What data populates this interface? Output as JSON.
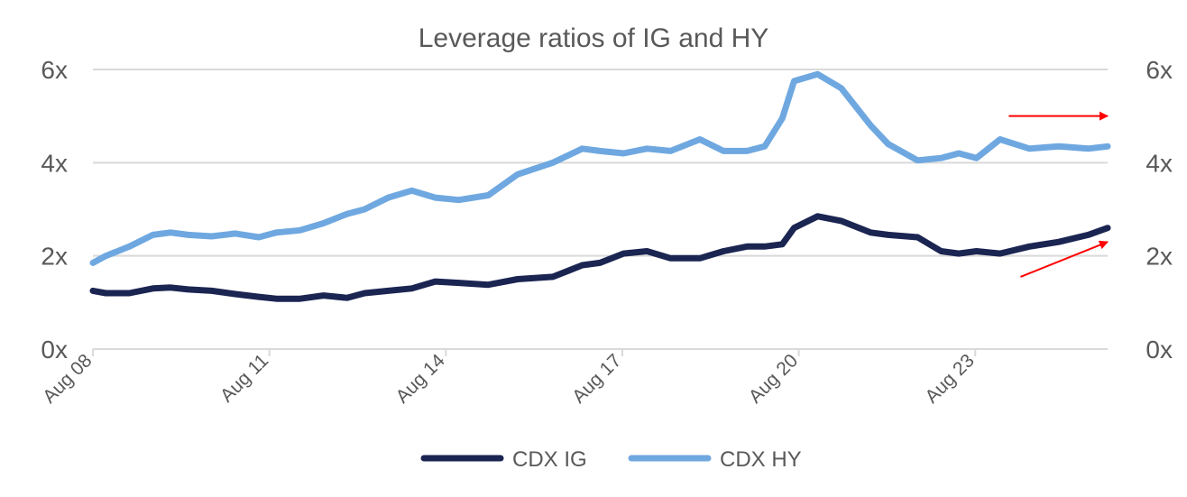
{
  "chart_data": {
    "type": "line",
    "title": "Leverage ratios of IG and HY",
    "xlabel": "",
    "ylabel": "",
    "x_tick_labels": [
      "Aug 08",
      "Aug 11",
      "Aug 14",
      "Aug 17",
      "Aug 20",
      "Aug 23"
    ],
    "x_tick_positions": [
      2008.58,
      2011.58,
      2014.58,
      2017.58,
      2020.58,
      2023.58
    ],
    "xlim": [
      2008.58,
      2025.83
    ],
    "ylim": [
      0,
      6
    ],
    "y_ticks": [
      0,
      2,
      4,
      6
    ],
    "y_tick_labels_left": [
      "0x",
      "2x",
      "4x",
      "6x"
    ],
    "y_tick_labels_right": [
      "0x",
      "2x",
      "4x",
      "6x"
    ],
    "grid": true,
    "legend_position": "bottom",
    "series": [
      {
        "name": "CDX IG",
        "color": "#1b2552",
        "x": [
          2008.58,
          2008.8,
          2009.2,
          2009.6,
          2009.9,
          2010.2,
          2010.6,
          2011.0,
          2011.4,
          2011.7,
          2012.1,
          2012.5,
          2012.9,
          2013.2,
          2013.6,
          2014.0,
          2014.4,
          2014.8,
          2015.3,
          2015.8,
          2016.4,
          2016.9,
          2017.2,
          2017.6,
          2018.0,
          2018.4,
          2018.9,
          2019.3,
          2019.7,
          2020.0,
          2020.3,
          2020.5,
          2020.9,
          2021.3,
          2021.8,
          2022.1,
          2022.6,
          2023.0,
          2023.3,
          2023.6,
          2024.0,
          2024.5,
          2025.0,
          2025.5,
          2025.83
        ],
        "values": [
          1.25,
          1.2,
          1.2,
          1.3,
          1.32,
          1.28,
          1.25,
          1.18,
          1.12,
          1.08,
          1.08,
          1.15,
          1.1,
          1.2,
          1.25,
          1.3,
          1.45,
          1.42,
          1.38,
          1.5,
          1.55,
          1.8,
          1.85,
          2.05,
          2.1,
          1.95,
          1.95,
          2.1,
          2.2,
          2.2,
          2.25,
          2.6,
          2.85,
          2.75,
          2.5,
          2.45,
          2.4,
          2.1,
          2.05,
          2.1,
          2.05,
          2.2,
          2.3,
          2.45,
          2.6
        ],
        "annotation_arrow": "trend arrow upward toward 2.3x"
      },
      {
        "name": "CDX HY",
        "color": "#6fa8e0",
        "x": [
          2008.58,
          2008.8,
          2009.2,
          2009.6,
          2009.9,
          2010.2,
          2010.6,
          2011.0,
          2011.4,
          2011.7,
          2012.1,
          2012.5,
          2012.9,
          2013.2,
          2013.6,
          2014.0,
          2014.4,
          2014.8,
          2015.3,
          2015.8,
          2016.4,
          2016.9,
          2017.2,
          2017.6,
          2018.0,
          2018.4,
          2018.9,
          2019.3,
          2019.7,
          2020.0,
          2020.3,
          2020.5,
          2020.9,
          2021.3,
          2021.8,
          2022.1,
          2022.6,
          2023.0,
          2023.3,
          2023.6,
          2024.0,
          2024.5,
          2025.0,
          2025.5,
          2025.83
        ],
        "values": [
          1.85,
          2.0,
          2.2,
          2.45,
          2.5,
          2.45,
          2.42,
          2.48,
          2.4,
          2.5,
          2.55,
          2.7,
          2.9,
          3.0,
          3.25,
          3.4,
          3.25,
          3.2,
          3.3,
          3.75,
          4.0,
          4.3,
          4.25,
          4.2,
          4.3,
          4.25,
          4.5,
          4.25,
          4.25,
          4.35,
          4.95,
          5.75,
          5.9,
          5.6,
          4.8,
          4.4,
          4.05,
          4.1,
          4.2,
          4.1,
          4.5,
          4.3,
          4.35,
          4.3,
          4.35
        ],
        "annotation_arrow": "flat arrow pointing right at 5x"
      }
    ]
  }
}
